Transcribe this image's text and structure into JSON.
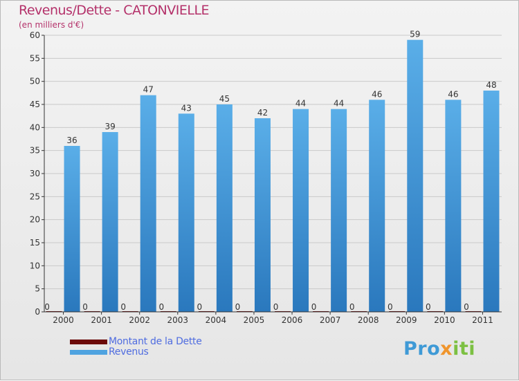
{
  "title": "Revenus/Dette - CATONVIELLE",
  "subtitle": "(en milliers d'€)",
  "brand": {
    "text": "Proxiti",
    "segments": [
      {
        "text": "Pro",
        "color": "#3f9ad6"
      },
      {
        "text": "x",
        "color": "#f0952c"
      },
      {
        "text": "iti",
        "color": "#7cc042"
      }
    ]
  },
  "colors": {
    "title": "#b4316a",
    "debt": "#6b0a0a",
    "revenue": "#4fa3e0",
    "revenue_dark": "#2a78bd",
    "legend_text": "#4f6ce0",
    "axis": "#333333",
    "grid": "#c9c9c9"
  },
  "chart_data": {
    "type": "bar",
    "categories": [
      "2000",
      "2001",
      "2002",
      "2003",
      "2004",
      "2005",
      "2006",
      "2007",
      "2008",
      "2009",
      "2010",
      "2011"
    ],
    "series": [
      {
        "name": "Montant de la Dette",
        "values": [
          0,
          0,
          0,
          0,
          0,
          0,
          0,
          0,
          0,
          0,
          0,
          0
        ]
      },
      {
        "name": "Revenus",
        "values": [
          36,
          39,
          47,
          43,
          45,
          42,
          44,
          44,
          46,
          59,
          46,
          48
        ]
      }
    ],
    "ylim": [
      0,
      60
    ],
    "yticks": [
      0,
      5,
      10,
      15,
      20,
      25,
      30,
      35,
      40,
      45,
      50,
      55,
      60
    ],
    "grid": true,
    "legend_position": "bottom-left"
  }
}
